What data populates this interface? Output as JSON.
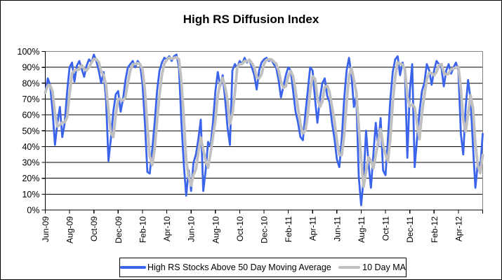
{
  "chart_data": {
    "type": "line",
    "title": "High RS Diffusion Index",
    "xlabel": "",
    "ylabel": "",
    "ylim": [
      0,
      100
    ],
    "grid": "horizontal",
    "legend_position": "bottom",
    "y_tick_labels": [
      "0%",
      "10%",
      "20%",
      "30%",
      "40%",
      "50%",
      "60%",
      "70%",
      "80%",
      "90%",
      "100%"
    ],
    "x_tick_labels": [
      "Jun-09",
      "Aug-09",
      "Oct-09",
      "Dec-09",
      "Feb-10",
      "Apr-10",
      "Jun-10",
      "Aug-10",
      "Oct-10",
      "Dec-10",
      "Feb-11",
      "Apr-11",
      "Jun-11",
      "Aug-11",
      "Oct-11",
      "Dec-11",
      "Feb-12",
      "Apr-12"
    ],
    "x_points_per_tick_interval": 10,
    "colors": {
      "gridline": "#000000",
      "plot_border": "#808080",
      "axis": "#000000"
    },
    "series": [
      {
        "name": "High RS Stocks Above 50 Day Moving Average",
        "color": "#3b64eb",
        "stroke_width": 2.8,
        "values": [
          74,
          83,
          79,
          62,
          41,
          55,
          65,
          46,
          55,
          75,
          90,
          93,
          81,
          91,
          94,
          89,
          84,
          91,
          95,
          93,
          98,
          94,
          88,
          80,
          87,
          70,
          31,
          45,
          62,
          73,
          75,
          62,
          70,
          82,
          90,
          92,
          94,
          90,
          94,
          92,
          80,
          55,
          24,
          23,
          38,
          55,
          75,
          88,
          93,
          96,
          95,
          97,
          94,
          97,
          98,
          90,
          56,
          29,
          9,
          25,
          12,
          30,
          35,
          45,
          57,
          12,
          25,
          43,
          40,
          55,
          75,
          87,
          78,
          85,
          70,
          52,
          41,
          88,
          92,
          90,
          94,
          92,
          96,
          93,
          95,
          90,
          85,
          76,
          88,
          93,
          95,
          96,
          94,
          95,
          92,
          90,
          82,
          71,
          78,
          85,
          90,
          88,
          75,
          62,
          55,
          46,
          44,
          60,
          75,
          90,
          88,
          70,
          55,
          70,
          80,
          83,
          72,
          68,
          55,
          45,
          32,
          27,
          45,
          70,
          88,
          96,
          85,
          65,
          72,
          21,
          3,
          20,
          50,
          30,
          14,
          35,
          55,
          40,
          58,
          25,
          22,
          45,
          70,
          87,
          95,
          97,
          85,
          93,
          88,
          33,
          75,
          92,
          27,
          45,
          62,
          75,
          80,
          92,
          88,
          79,
          88,
          94,
          92,
          90,
          78,
          88,
          92,
          86,
          90,
          93,
          88,
          48,
          35,
          65,
          82,
          70,
          40,
          14,
          30,
          26,
          48
        ]
      },
      {
        "name": "10 Day MA",
        "color": "#c0c0c0",
        "stroke_width": 3.8,
        "derived": "trailing_moving_average_of_series_0",
        "window_points": 3
      }
    ]
  }
}
